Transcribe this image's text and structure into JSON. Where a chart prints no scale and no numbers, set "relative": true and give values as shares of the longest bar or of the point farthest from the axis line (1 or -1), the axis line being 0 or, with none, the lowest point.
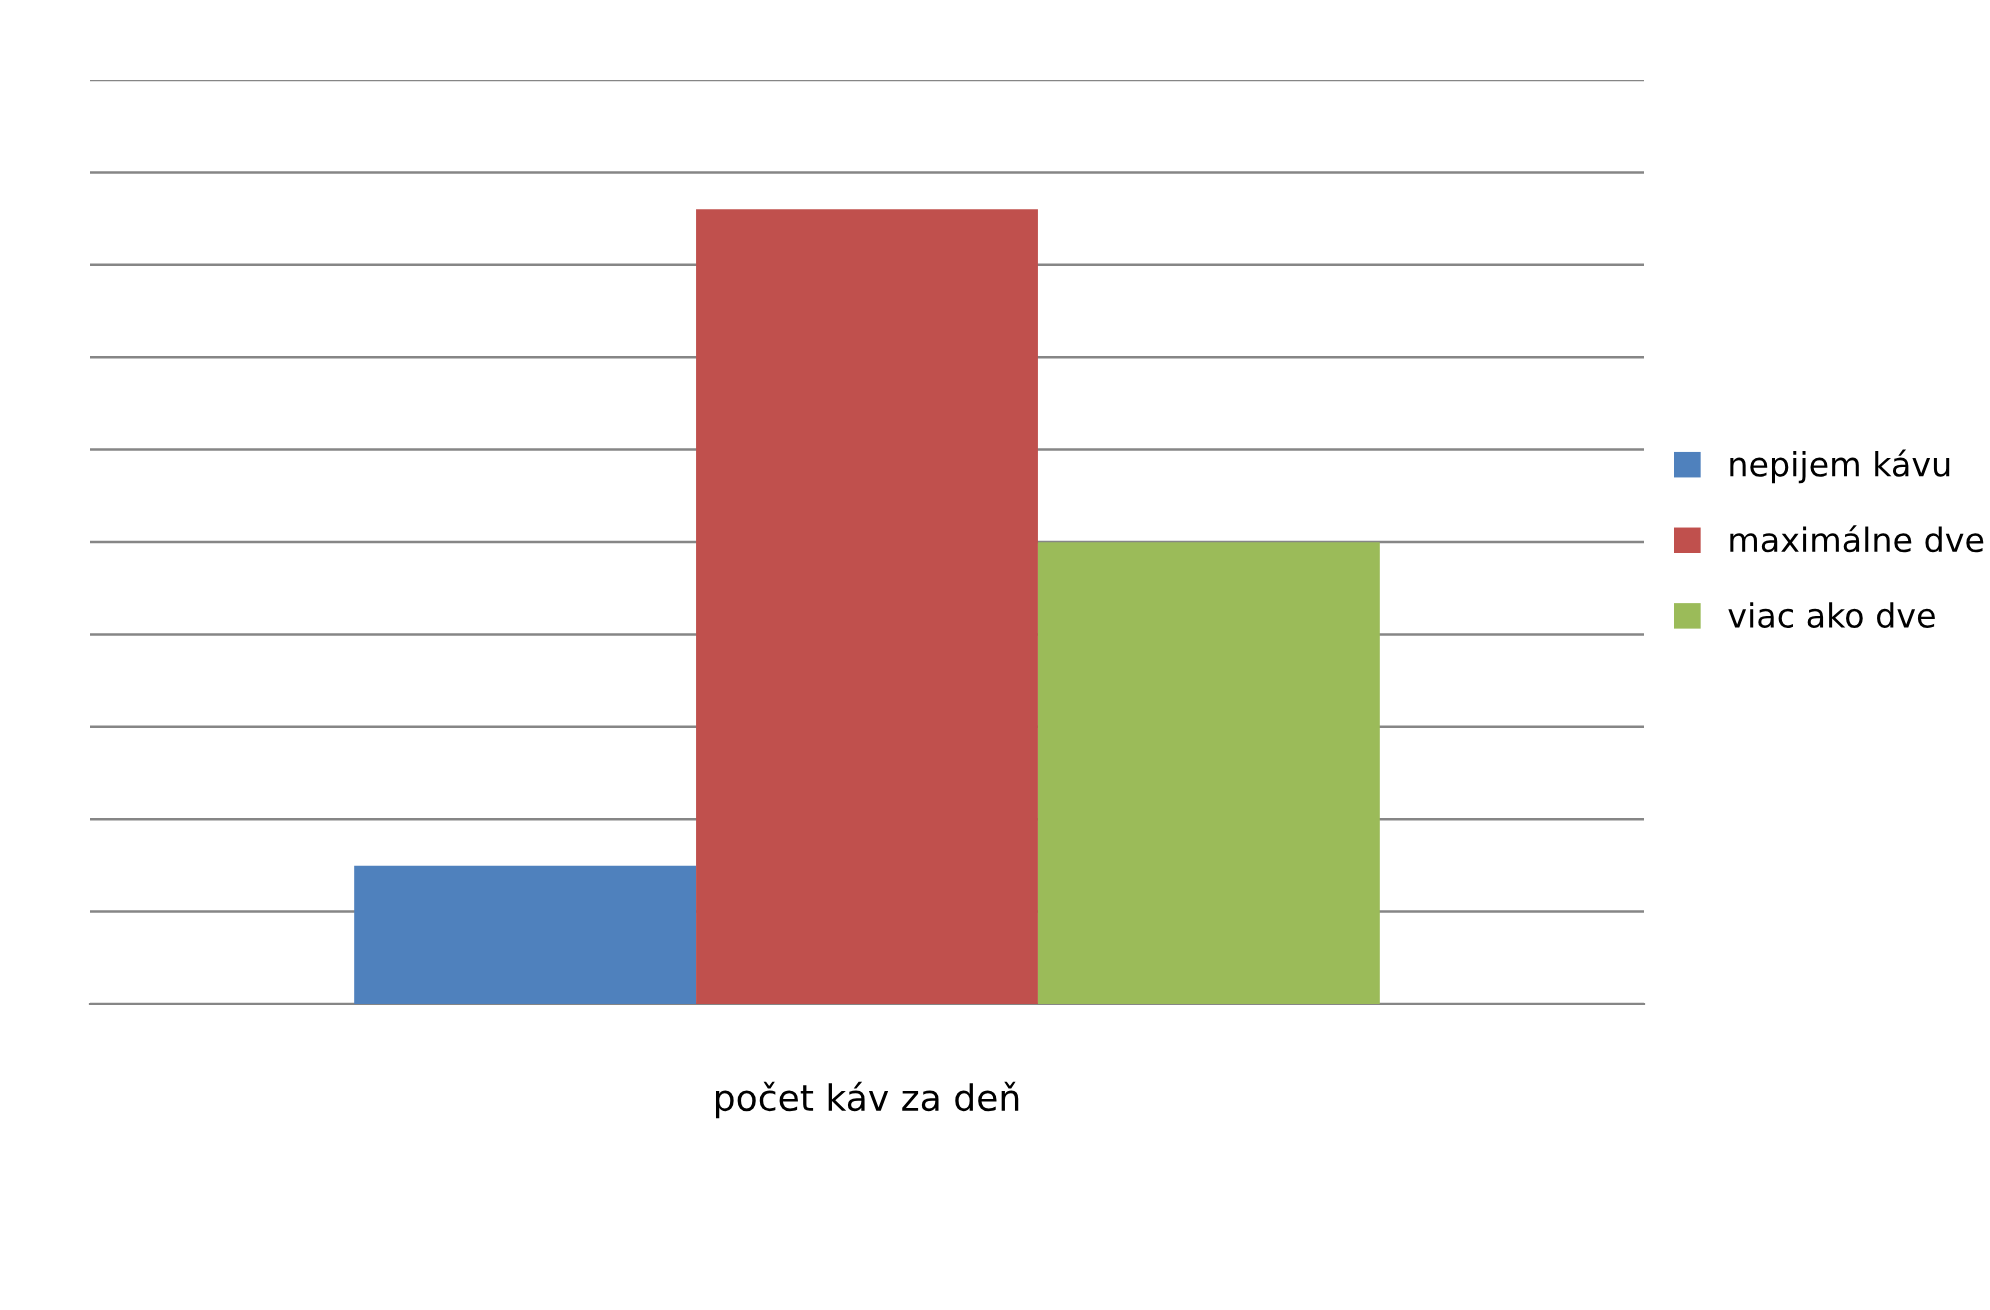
{
  "chart_data": {
    "type": "bar",
    "relative": true,
    "categories": [
      null
    ],
    "xlabel": "počet káv za deň",
    "series": [
      {
        "name": "nepijem kávu",
        "color": "#4f81bd",
        "values": [
          0.174
        ]
      },
      {
        "name": "maximálne dve",
        "color": "#c0504d",
        "values": [
          1
        ]
      },
      {
        "name": "viac ako dve",
        "color": "#9bbb59",
        "values": [
          0.581
        ]
      }
    ],
    "grid": "y",
    "legend": "right"
  }
}
